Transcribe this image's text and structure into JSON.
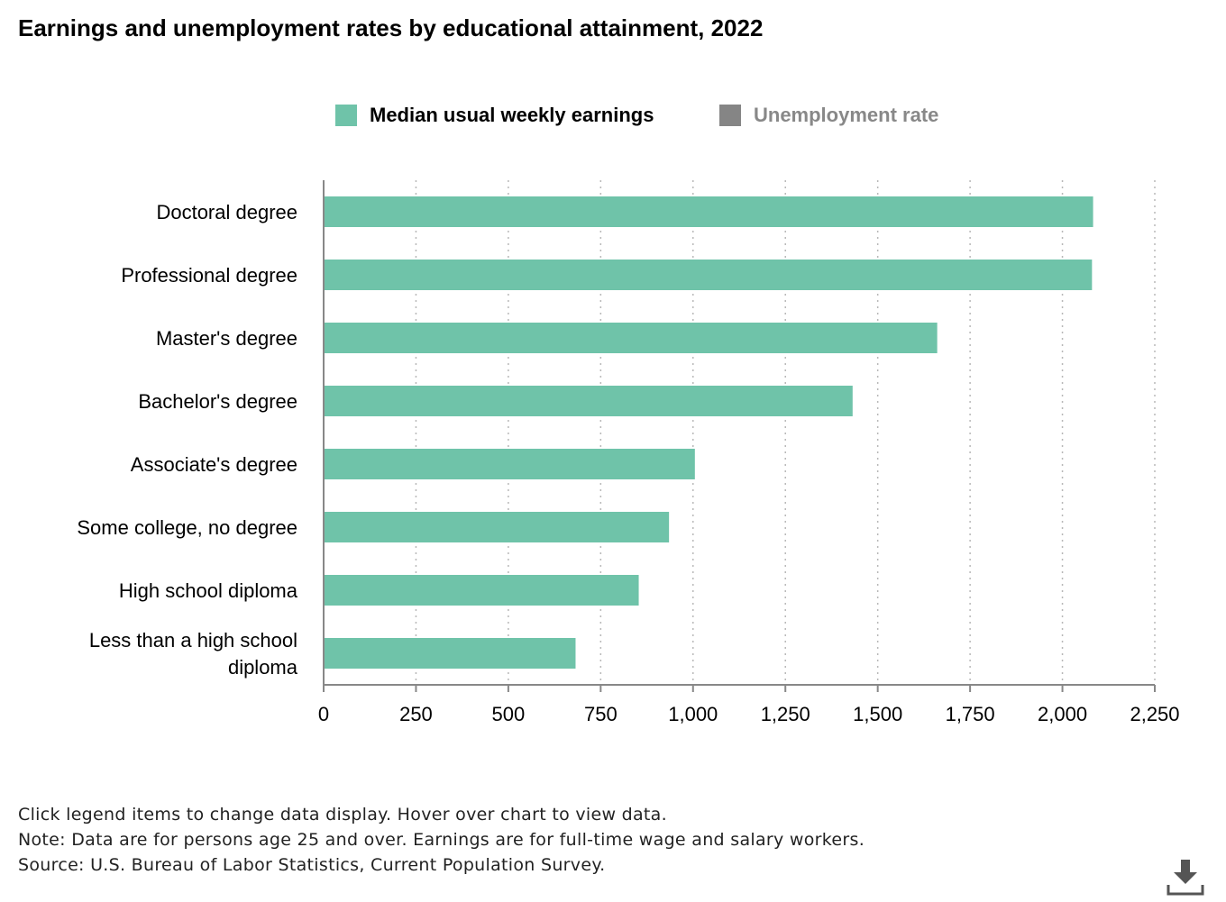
{
  "title": "Earnings and unemployment rates by educational attainment, 2022",
  "legend": {
    "items": [
      {
        "label": "Median usual weekly earnings",
        "color": "#6fc3a9",
        "active": true
      },
      {
        "label": "Unemployment rate",
        "color": "#858585",
        "active": false
      }
    ]
  },
  "chart_data": {
    "type": "bar",
    "orientation": "horizontal",
    "categories": [
      "Doctoral degree",
      "Professional degree",
      "Master's degree",
      "Bachelor's degree",
      "Associate's degree",
      "Some college, no degree",
      "High school diploma",
      "Less than a high school diploma"
    ],
    "series": [
      {
        "name": "Median usual weekly earnings",
        "color": "#6fc3a9",
        "values": [
          2083,
          2080,
          1661,
          1432,
          1005,
          935,
          853,
          682
        ]
      }
    ],
    "xlim": [
      0,
      2250
    ],
    "xticks": [
      0,
      250,
      500,
      750,
      1000,
      1250,
      1500,
      1750,
      2000,
      2250
    ],
    "xtick_labels": [
      "0",
      "250",
      "500",
      "750",
      "1,000",
      "1,250",
      "1,500",
      "1,750",
      "2,000",
      "2,250"
    ],
    "grid": "vertical-dotted",
    "legend_position": "top-center"
  },
  "footer": {
    "instructions": "Click legend items to change data display. Hover over chart to view data.",
    "note": "Note: Data are for persons age 25 and over. Earnings are for full-time wage and salary workers.",
    "source": "Source: U.S. Bureau of Labor Statistics, Current Population Survey."
  },
  "download": {
    "icon": "download-icon",
    "color": "#555555"
  }
}
